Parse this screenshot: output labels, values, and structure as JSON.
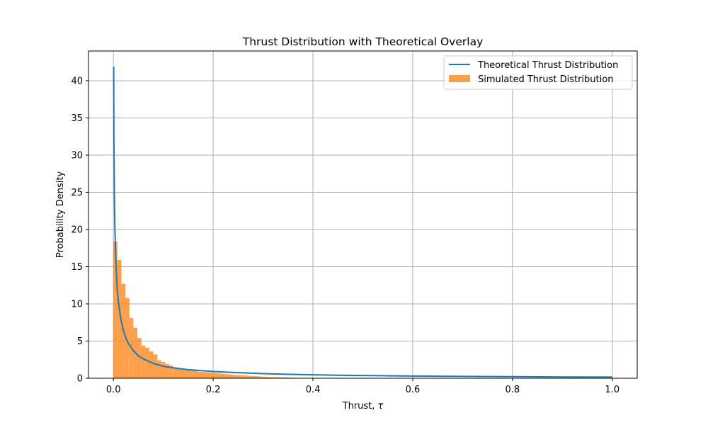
{
  "chart_data": {
    "type": "bar",
    "title": "Thrust Distribution with Theoretical Overlay",
    "xlabel_text": "Thrust, ",
    "xlabel_symbol": "τ",
    "ylabel": "Probability Density",
    "xlim": [
      -0.05,
      1.05
    ],
    "ylim": [
      0,
      44
    ],
    "xticks": [
      0.0,
      0.2,
      0.4,
      0.6,
      0.8,
      1.0
    ],
    "xtick_labels": [
      "0.0",
      "0.2",
      "0.4",
      "0.6",
      "0.8",
      "1.0"
    ],
    "yticks": [
      0,
      5,
      10,
      15,
      20,
      25,
      30,
      35,
      40
    ],
    "ytick_labels": [
      "0",
      "5",
      "10",
      "15",
      "20",
      "25",
      "30",
      "35",
      "40"
    ],
    "grid": true,
    "legend_position": "top-right",
    "series": [
      {
        "name": "Theoretical Thrust Distribution",
        "type": "line",
        "color": "#1f77b4",
        "x": [
          0.0005,
          0.001,
          0.002,
          0.003,
          0.005,
          0.0075,
          0.01,
          0.015,
          0.02,
          0.025,
          0.03,
          0.04,
          0.05,
          0.06,
          0.08,
          0.1,
          0.125,
          0.15,
          0.2,
          0.25,
          0.3,
          0.35,
          0.4,
          0.45,
          0.5,
          0.6,
          0.7,
          0.8,
          0.9,
          1.0
        ],
        "y": [
          41.9,
          32.0,
          24.0,
          20.0,
          15.5,
          12.0,
          10.2,
          7.9,
          6.4,
          5.4,
          4.7,
          3.7,
          3.0,
          2.6,
          2.0,
          1.6,
          1.35,
          1.15,
          0.9,
          0.75,
          0.62,
          0.54,
          0.47,
          0.41,
          0.37,
          0.3,
          0.25,
          0.21,
          0.17,
          0.15
        ]
      },
      {
        "name": "Simulated Thrust Distribution",
        "type": "histogram",
        "color": "#ff7f0e",
        "opacity": 0.75,
        "bin_width": 0.008,
        "bin_start": 0.0,
        "values": [
          18.4,
          15.9,
          12.7,
          10.8,
          8.1,
          6.8,
          5.4,
          4.4,
          4.1,
          3.6,
          3.2,
          2.4,
          2.2,
          1.9,
          1.7,
          1.5,
          1.4,
          1.3,
          1.2,
          1.1,
          1.0,
          0.9,
          0.85,
          0.8,
          0.75,
          0.7,
          0.65,
          0.6,
          0.55,
          0.5,
          0.45,
          0.42,
          0.4,
          0.35,
          0.3,
          0.28,
          0.25,
          0.2,
          0.2,
          0.15,
          0.15,
          0.12,
          0.1,
          0.1,
          0.08,
          0.06,
          0.05,
          0.04
        ]
      }
    ]
  }
}
